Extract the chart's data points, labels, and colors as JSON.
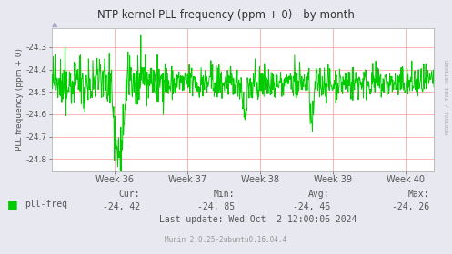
{
  "title": "NTP kernel PLL frequency (ppm + 0) - by month",
  "ylabel": "PLL frequency (ppm + 0)",
  "right_label": "RRDTOOL / TOBI OETIKER",
  "ylim": [
    -24.855,
    -24.215
  ],
  "yticks": [
    -24.8,
    -24.7,
    -24.6,
    -24.5,
    -24.4,
    -24.3
  ],
  "xtick_labels": [
    "Week 36",
    "Week 37",
    "Week 38",
    "Week 39",
    "Week 40"
  ],
  "xtick_positions": [
    0.165,
    0.355,
    0.545,
    0.735,
    0.925
  ],
  "vline_positions": [
    0.165,
    0.355,
    0.545,
    0.735,
    0.925
  ],
  "legend_label": "pll-freq",
  "legend_color": "#00cc00",
  "cur": "-24. 42",
  "min_val": "-24. 85",
  "avg": "-24. 46",
  "max_val": "-24. 26",
  "last_update": "Last update: Wed Oct  2 12:00:06 2024",
  "munin_version": "Munin 2.0.25-2ubuntu0.16.04.4",
  "line_color": "#00cc00",
  "bg_color": "#e8e8f0",
  "plot_bg_color": "#ffffff",
  "grid_h_color": "#ffaaaa",
  "grid_v_color": "#ffaaaa",
  "axis_color": "#555555",
  "title_color": "#333333",
  "seed": 42,
  "n_points": 900
}
